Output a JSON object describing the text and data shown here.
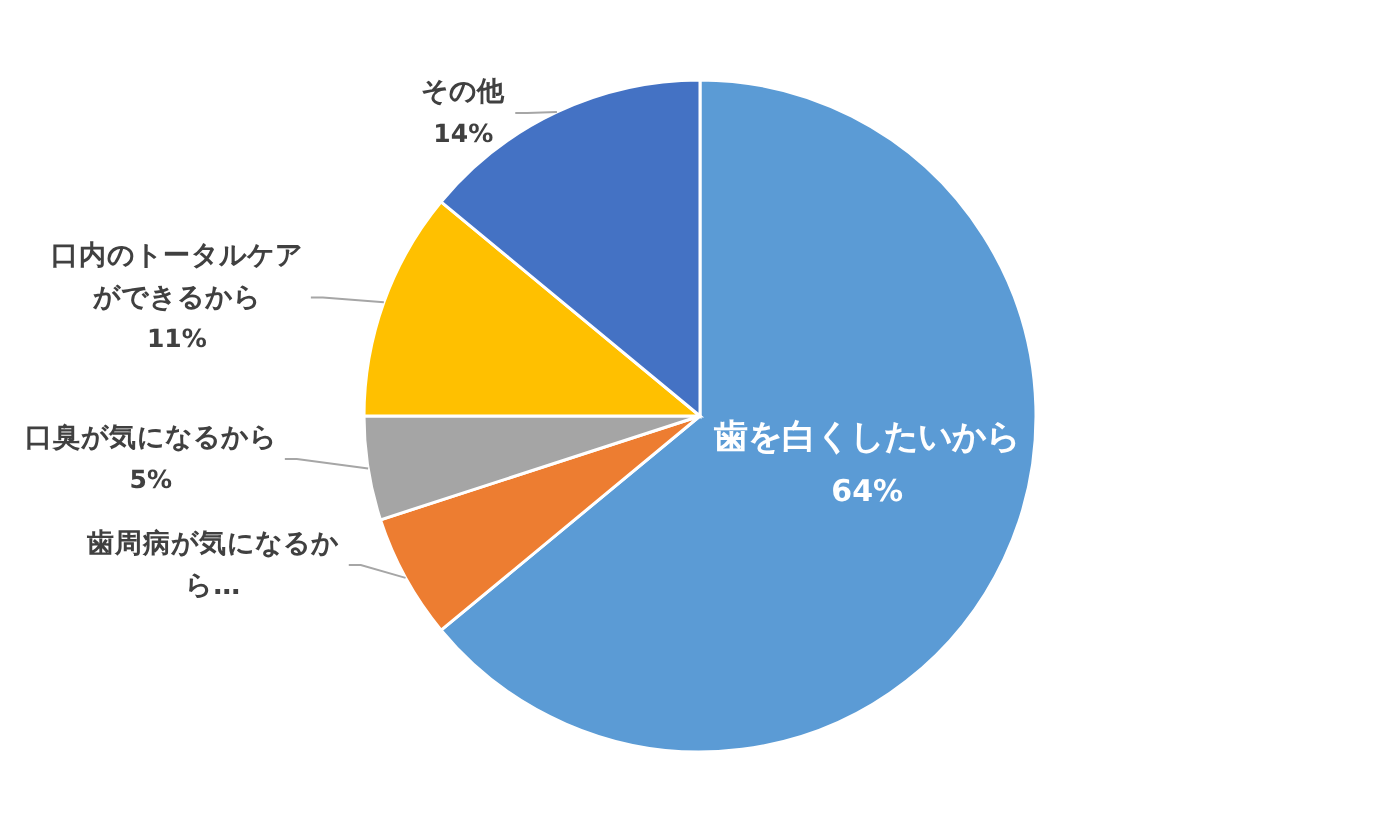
{
  "chart_data": {
    "type": "pie",
    "categories": [
      "歯を白くしたいから",
      "歯周病が気になるから…",
      "口臭が気になるから",
      "口内のトータルケアができるから",
      "その他"
    ],
    "values": [
      64,
      6,
      5,
      11,
      14
    ],
    "colors": [
      "#5b9bd5",
      "#ed7d31",
      "#a5a5a5",
      "#ffc000",
      "#4472c4"
    ],
    "value_labels": [
      "64%",
      null,
      "5%",
      "11%",
      "14%"
    ]
  }
}
